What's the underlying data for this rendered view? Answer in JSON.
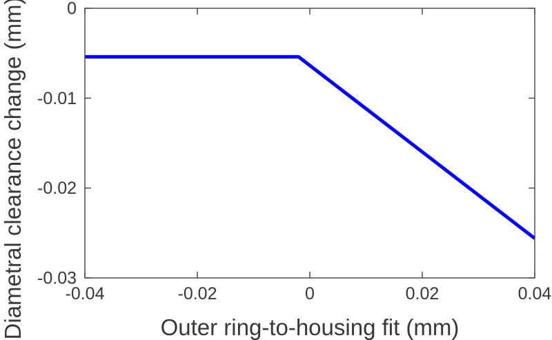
{
  "chart_data": {
    "type": "line",
    "title": "",
    "xlabel": "Outer ring-to-housing fit (mm)",
    "ylabel": "Diametral clearance change (mm)",
    "xlim": [
      -0.04,
      0.04
    ],
    "ylim": [
      -0.03,
      0
    ],
    "xticks": [
      -0.04,
      -0.02,
      0,
      0.02,
      0.04
    ],
    "xtick_labels": [
      "-0.04",
      "-0.02",
      "0",
      "0.02",
      "0.04"
    ],
    "yticks": [
      0,
      -0.01,
      -0.02,
      -0.03
    ],
    "ytick_labels": [
      "0",
      "-0.01",
      "-0.02",
      "-0.03"
    ],
    "grid": false,
    "box": true,
    "tick_direction": "in",
    "legend": "none",
    "axis_color": "#4d4d4d",
    "text_color": "#383838",
    "background_color": "#ffffff",
    "series": [
      {
        "name": "diametral-clearance-change",
        "color": "#0000ff",
        "line_width": 5,
        "points": [
          [
            -0.04,
            -0.0054
          ],
          [
            -0.002,
            -0.0054
          ],
          [
            0.04,
            -0.0256
          ]
        ]
      }
    ]
  }
}
